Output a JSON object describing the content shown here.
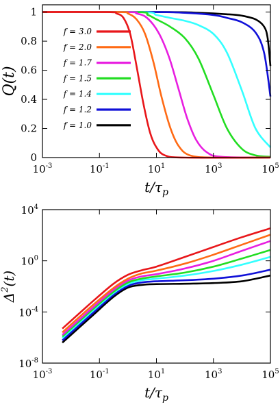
{
  "chart_data": [
    {
      "type": "line",
      "xscale": "log",
      "xlim": [
        0.001,
        100000
      ],
      "ylim": [
        0,
        1.05
      ],
      "xticks": [
        {
          "exp": "-3",
          "value": 0.001
        },
        {
          "exp": "-1",
          "value": 0.1
        },
        {
          "exp": "1",
          "value": 10
        },
        {
          "exp": "3",
          "value": 1000
        },
        {
          "exp": "5",
          "value": 100000
        }
      ],
      "yticks": [
        "0",
        "0.2",
        "0.4",
        "0.6",
        "0.8",
        "1"
      ],
      "ytick_values": [
        0,
        0.2,
        0.4,
        0.6,
        0.8,
        1
      ],
      "xlabel_main": "t/τ",
      "xlabel_sub": "p",
      "ylabel": "Q(t)",
      "legend_location": "left",
      "series": [
        {
          "name": "f = 3.0",
          "color": "#e8161a",
          "x": [
            0.001,
            0.2,
            0.4,
            0.7,
            1.2,
            2,
            3.5,
            6,
            10,
            20,
            100,
            100000
          ],
          "y": [
            1,
            1,
            0.99,
            0.96,
            0.85,
            0.63,
            0.37,
            0.17,
            0.07,
            0.015,
            0,
            0
          ]
        },
        {
          "name": "f = 2.0",
          "color": "#ff6a14",
          "x": [
            0.001,
            0.5,
            1,
            2,
            4,
            8,
            15,
            30,
            60,
            150,
            1000,
            100000
          ],
          "y": [
            1,
            1,
            0.99,
            0.95,
            0.85,
            0.65,
            0.42,
            0.21,
            0.08,
            0.015,
            0,
            0
          ]
        },
        {
          "name": "f = 1.7",
          "color": "#e81ee0",
          "x": [
            0.001,
            1,
            2,
            4,
            8,
            15,
            30,
            60,
            120,
            250,
            600,
            2000,
            100000
          ],
          "y": [
            1,
            1,
            0.99,
            0.97,
            0.91,
            0.82,
            0.67,
            0.47,
            0.27,
            0.12,
            0.035,
            0.005,
            0
          ]
        },
        {
          "name": "f = 1.5",
          "color": "#22dd22",
          "x": [
            0.001,
            2,
            5,
            10,
            30,
            100,
            300,
            1000,
            3000,
            10000,
            30000,
            100000
          ],
          "y": [
            1,
            1,
            0.98,
            0.95,
            0.9,
            0.82,
            0.68,
            0.43,
            0.2,
            0.06,
            0.015,
            0.005
          ]
        },
        {
          "name": "f = 1.4",
          "color": "#33ffff",
          "x": [
            0.001,
            3,
            10,
            30,
            100,
            300,
            1000,
            3000,
            10000,
            30000,
            100000
          ],
          "y": [
            1,
            1,
            0.98,
            0.96,
            0.94,
            0.91,
            0.85,
            0.72,
            0.46,
            0.2,
            0.07
          ]
        },
        {
          "name": "f = 1.2",
          "color": "#1010d8",
          "x": [
            0.001,
            10,
            100,
            1000,
            3000,
            10000,
            30000,
            60000,
            100000
          ],
          "y": [
            1,
            1,
            0.995,
            0.98,
            0.96,
            0.93,
            0.86,
            0.72,
            0.42
          ]
        },
        {
          "name": "f = 1.0",
          "color": "#000000",
          "x": [
            0.001,
            30,
            300,
            3000,
            10000,
            30000,
            60000,
            80000,
            100000
          ],
          "y": [
            1,
            1,
            0.995,
            0.985,
            0.975,
            0.95,
            0.9,
            0.82,
            0.63
          ]
        }
      ]
    },
    {
      "type": "line",
      "xscale": "log",
      "yscale": "log",
      "xlim": [
        0.001,
        100000
      ],
      "ylim": [
        1e-08,
        10000
      ],
      "xticks": [
        {
          "exp": "-3",
          "value": 0.001
        },
        {
          "exp": "-1",
          "value": 0.1
        },
        {
          "exp": "1",
          "value": 10
        },
        {
          "exp": "3",
          "value": 1000
        },
        {
          "exp": "5",
          "value": 100000
        }
      ],
      "yticks": [
        {
          "exp": "-8",
          "value": 1e-08
        },
        {
          "exp": "-4",
          "value": 0.0001
        },
        {
          "exp": "0",
          "value": 1
        },
        {
          "exp": "4",
          "value": 10000
        }
      ],
      "xlabel_main": "t/τ",
      "xlabel_sub": "p",
      "ylabel_main": "Δ",
      "ylabel_sup": "2",
      "ylabel_tail": "(t)",
      "series": [
        {
          "name": "f = 3.0",
          "color": "#e8161a",
          "x": [
            0.005,
            0.05,
            0.3,
            1,
            3,
            10,
            100,
            1000,
            10000,
            100000
          ],
          "y": [
            5e-06,
            0.0005,
            0.015,
            0.08,
            0.18,
            0.35,
            2,
            12,
            70,
            350
          ]
        },
        {
          "name": "f = 2.0",
          "color": "#ff6a14",
          "x": [
            0.005,
            0.05,
            0.3,
            1,
            3,
            10,
            100,
            1000,
            10000,
            100000
          ],
          "y": [
            2.5e-06,
            0.00025,
            0.007,
            0.04,
            0.1,
            0.17,
            0.6,
            3,
            18,
            110
          ]
        },
        {
          "name": "f = 1.7",
          "color": "#e81ee0",
          "x": [
            0.005,
            0.05,
            0.3,
            1,
            3,
            10,
            100,
            1000,
            10000,
            100000
          ],
          "y": [
            1.6e-06,
            0.00016,
            0.005,
            0.028,
            0.06,
            0.09,
            0.25,
            1,
            6,
            35
          ]
        },
        {
          "name": "f = 1.5",
          "color": "#22dd22",
          "x": [
            0.005,
            0.05,
            0.3,
            1,
            3,
            10,
            100,
            1000,
            10000,
            100000
          ],
          "y": [
            1.2e-06,
            0.00012,
            0.0035,
            0.02,
            0.04,
            0.06,
            0.12,
            0.35,
            1.5,
            7
          ]
        },
        {
          "name": "f = 1.4",
          "color": "#33ffff",
          "x": [
            0.005,
            0.05,
            0.3,
            1,
            3,
            10,
            100,
            1000,
            10000,
            100000
          ],
          "y": [
            9e-07,
            9e-05,
            0.0028,
            0.015,
            0.03,
            0.04,
            0.07,
            0.16,
            0.5,
            2
          ]
        },
        {
          "name": "f = 1.2",
          "color": "#1010d8",
          "x": [
            0.005,
            0.05,
            0.3,
            1,
            3,
            10,
            100,
            1000,
            10000,
            100000
          ],
          "y": [
            6e-07,
            6e-05,
            0.002,
            0.011,
            0.02,
            0.025,
            0.03,
            0.04,
            0.07,
            0.2
          ]
        },
        {
          "name": "f = 1.0",
          "color": "#000000",
          "x": [
            0.005,
            0.05,
            0.3,
            1,
            3,
            10,
            100,
            1000,
            10000,
            100000
          ],
          "y": [
            4e-07,
            4e-05,
            0.0014,
            0.008,
            0.013,
            0.015,
            0.016,
            0.018,
            0.025,
            0.07
          ]
        }
      ]
    }
  ]
}
